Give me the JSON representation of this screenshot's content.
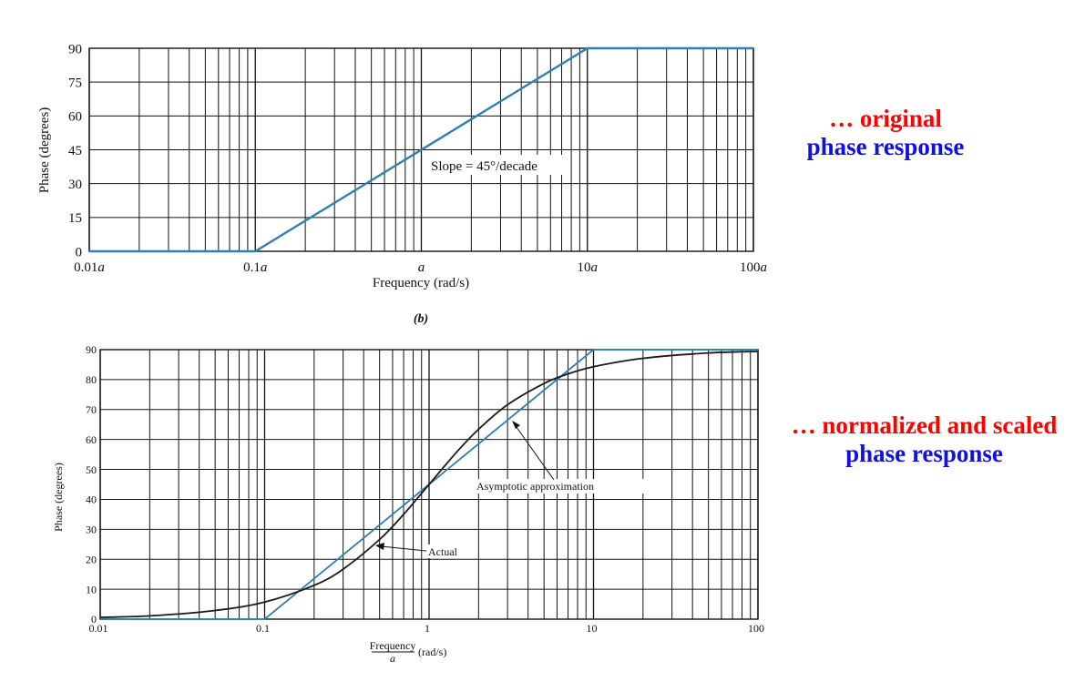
{
  "annotations": {
    "top": {
      "line1": "… original",
      "line2": "phase response",
      "color1": "#ff0000",
      "color2": "#1010e0"
    },
    "bottom": {
      "line1": "… normalized and scaled",
      "line2": "phase response",
      "color1": "#ff0000",
      "color2": "#1010e0"
    }
  },
  "chart_data": [
    {
      "type": "line",
      "caption": "(b)",
      "xlabel": "Frequency (rad/s)",
      "ylabel": "Phase (degrees)",
      "x_scale": "log",
      "xlim": [
        0.01,
        100
      ],
      "ylim": [
        0,
        90
      ],
      "grid": true,
      "x_tick_labels": [
        "0.01a",
        "0.1a",
        "a",
        "10a",
        "100a"
      ],
      "y_ticks": [
        0,
        15,
        30,
        45,
        60,
        75,
        90
      ],
      "series": [
        {
          "color": "#2f7fb0",
          "x": [
            0.01,
            0.1,
            10,
            100
          ],
          "y": [
            0,
            0,
            90,
            90
          ]
        }
      ],
      "annotations": [
        {
          "text": "Slope = 45°/decade"
        }
      ]
    },
    {
      "type": "line",
      "xlabel_num": "Frequency",
      "xlabel_den": "a",
      "xlabel_unit": "(rad/s)",
      "ylabel": "Phase (degrees)",
      "x_scale": "log",
      "xlim": [
        0.01,
        100
      ],
      "ylim": [
        0,
        90
      ],
      "grid": true,
      "x_tick_labels": [
        "0.01",
        "0.1",
        "1",
        "10",
        "100"
      ],
      "y_ticks": [
        0,
        10,
        20,
        30,
        40,
        50,
        60,
        70,
        80,
        90
      ],
      "series": [
        {
          "name": "Asymptotic approximation",
          "color": "#2f7fb0",
          "x": [
            0.01,
            0.1,
            10,
            100
          ],
          "y": [
            0,
            0,
            90,
            90
          ]
        },
        {
          "name": "Actual",
          "color": "#1a1a1a",
          "x": [
            0.01,
            0.02,
            0.05,
            0.1,
            0.2,
            0.3,
            0.5,
            0.7,
            1,
            1.5,
            2,
            3,
            5,
            7,
            10,
            20,
            50,
            100
          ],
          "y": [
            0.6,
            1.1,
            2.9,
            5.7,
            11.3,
            16.7,
            26.6,
            35.0,
            45.0,
            56.3,
            63.4,
            71.6,
            78.7,
            81.9,
            84.3,
            87.1,
            88.9,
            89.4
          ]
        }
      ],
      "annotations": [
        {
          "text": "Asymptotic approximation"
        },
        {
          "text": "Actual"
        }
      ]
    }
  ]
}
